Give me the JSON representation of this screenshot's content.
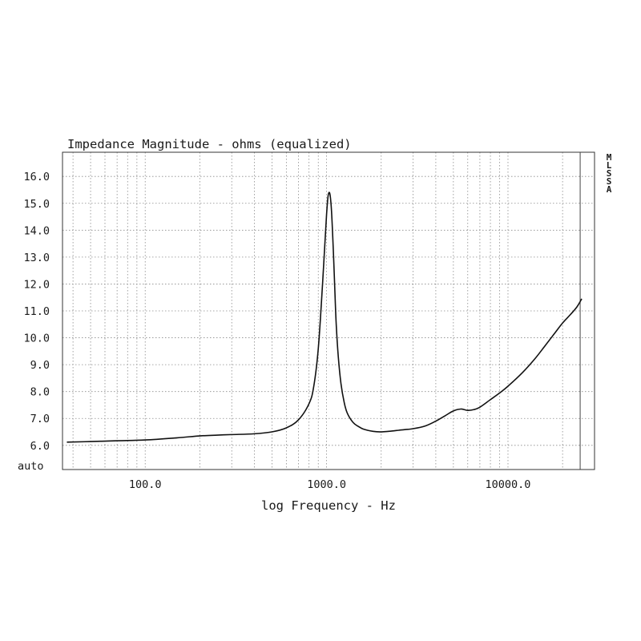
{
  "chart_data": {
    "type": "line",
    "title": "Impedance Magnitude - ohms (equalized)",
    "xlabel": "log Frequency - Hz",
    "ylabel": "",
    "x_scale": "log",
    "xlim": [
      35,
      30000
    ],
    "ylim": [
      5.1,
      16.9
    ],
    "grid": true,
    "x_tick_labels": [
      {
        "value": 100,
        "label": "100.0"
      },
      {
        "value": 1000,
        "label": "1000.0"
      },
      {
        "value": 10000,
        "label": "10000.0"
      }
    ],
    "y_tick_labels": [
      {
        "value": 6,
        "label": "6.0"
      },
      {
        "value": 7,
        "label": "7.0"
      },
      {
        "value": 8,
        "label": "8.0"
      },
      {
        "value": 9,
        "label": "9.0"
      },
      {
        "value": 10,
        "label": "10.0"
      },
      {
        "value": 11,
        "label": "11.0"
      },
      {
        "value": 12,
        "label": "12.0"
      },
      {
        "value": 13,
        "label": "13.0"
      },
      {
        "value": 14,
        "label": "14.0"
      },
      {
        "value": 15,
        "label": "15.0"
      },
      {
        "value": 16,
        "label": "16.0"
      }
    ],
    "y_bottom_label": "auto",
    "right_label": "MLSSA",
    "marker_x": 25000,
    "series": [
      {
        "x": [
          37,
          50,
          70,
          100,
          150,
          200,
          250,
          300,
          400,
          500,
          600,
          700,
          800,
          850,
          900,
          950,
          1000,
          1030,
          1060,
          1090,
          1110,
          1130,
          1160,
          1200,
          1250,
          1300,
          1400,
          1500,
          1600,
          1800,
          2000,
          2200,
          2500,
          3000,
          3500,
          4000,
          4500,
          5000,
          5500,
          6000,
          6500,
          7000,
          8000,
          9000,
          10000,
          12000,
          14000,
          16000,
          18000,
          20000,
          22000,
          24000,
          25500
        ],
        "y": [
          6.12,
          6.14,
          6.17,
          6.2,
          6.28,
          6.35,
          6.38,
          6.4,
          6.43,
          6.5,
          6.65,
          6.95,
          7.55,
          8.2,
          9.6,
          12.0,
          14.6,
          15.4,
          14.9,
          13.2,
          11.8,
          10.5,
          9.3,
          8.3,
          7.6,
          7.2,
          6.85,
          6.7,
          6.6,
          6.52,
          6.5,
          6.52,
          6.56,
          6.62,
          6.72,
          6.9,
          7.1,
          7.28,
          7.35,
          7.3,
          7.33,
          7.42,
          7.7,
          7.95,
          8.2,
          8.7,
          9.2,
          9.7,
          10.15,
          10.55,
          10.85,
          11.15,
          11.45
        ]
      }
    ]
  }
}
